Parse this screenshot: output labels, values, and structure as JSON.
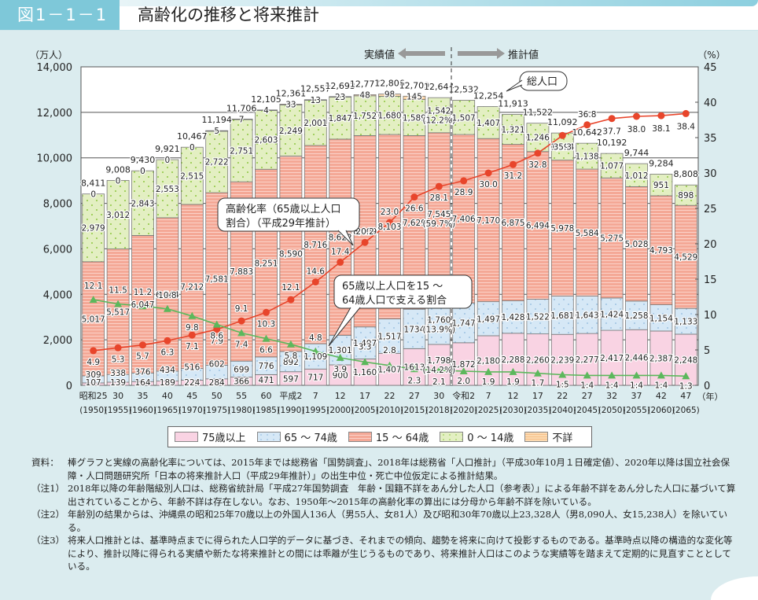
{
  "header": {
    "figure_number": "図1－1－1",
    "title": "高齢化の推移と将来推計"
  },
  "chart_data": {
    "type": "bar",
    "stacked": true,
    "title": "高齢化の推移と将来推計",
    "left_axis": {
      "unit_label": "（万人）",
      "min": 0,
      "max": 14000,
      "ticks": [
        0,
        2000,
        4000,
        6000,
        8000,
        10000,
        12000,
        14000
      ],
      "tick_labels": [
        "0",
        "2,000",
        "4,000",
        "6,000",
        "8,000",
        "10,000",
        "12,000",
        "14,000"
      ]
    },
    "right_axis": {
      "unit_label": "（%）",
      "min": 0,
      "max": 45,
      "ticks": [
        0,
        5,
        10,
        15,
        20,
        25,
        30,
        35,
        40,
        45
      ],
      "tick_labels": [
        "0",
        "5",
        "10",
        "15",
        "20",
        "25",
        "30",
        "35",
        "40",
        "45"
      ]
    },
    "x_unit_label": "（年）",
    "grid": true,
    "categories": [
      {
        "era": "昭和25",
        "year": "(1950)"
      },
      {
        "era": "30",
        "year": "(1955)"
      },
      {
        "era": "35",
        "year": "(1960)"
      },
      {
        "era": "40",
        "year": "(1965)"
      },
      {
        "era": "45",
        "year": "(1970)"
      },
      {
        "era": "50",
        "year": "(1975)"
      },
      {
        "era": "55",
        "year": "(1980)"
      },
      {
        "era": "60",
        "year": "(1985)"
      },
      {
        "era": "平成2",
        "year": "(1990)"
      },
      {
        "era": "7",
        "year": "(1995)"
      },
      {
        "era": "12",
        "year": "(2000)"
      },
      {
        "era": "17",
        "year": "(2005)"
      },
      {
        "era": "22",
        "year": "(2010)"
      },
      {
        "era": "27",
        "year": "(2015)"
      },
      {
        "era": "30",
        "year": "(2018)"
      },
      {
        "era": "令和2",
        "year": "(2020)"
      },
      {
        "era": "7",
        "year": "(2025)"
      },
      {
        "era": "12",
        "year": "(2030)"
      },
      {
        "era": "17",
        "year": "(2035)"
      },
      {
        "era": "22",
        "year": "(2040)"
      },
      {
        "era": "27",
        "year": "(2045)"
      },
      {
        "era": "32",
        "year": "(2050)"
      },
      {
        "era": "37",
        "year": "(2055)"
      },
      {
        "era": "42",
        "year": "(2060)"
      },
      {
        "era": "47",
        "year": "(2065)"
      }
    ],
    "series": [
      {
        "name": "75歳以上",
        "color": "#f9d3e3",
        "values": [
          107,
          139,
          164,
          189,
          224,
          284,
          366,
          471,
          597,
          717,
          900,
          1160,
          1407,
          1613,
          1798,
          1872,
          2180,
          2288,
          2260,
          2239,
          2277,
          2417,
          2446,
          2387,
          2248
        ],
        "labels": [
          "107",
          "139",
          "164",
          "189",
          "224",
          "284",
          "366",
          "471",
          "597",
          "717",
          "900",
          "1,160",
          "1,407",
          "1613",
          "1,798\n(14.2%)",
          "1,872",
          "2,180",
          "2,288",
          "2,260",
          "2,239",
          "2,277",
          "2,417",
          "2,446",
          "2,387",
          "2,248"
        ]
      },
      {
        "name": "65～74歳",
        "color": "#d6e8f6",
        "values": [
          309,
          338,
          376,
          434,
          516,
          602,
          699,
          776,
          892,
          1109,
          1301,
          1407,
          1517,
          1734,
          1760,
          1747,
          1497,
          1428,
          1522,
          1681,
          1643,
          1424,
          1258,
          1154,
          1133
        ],
        "labels": [
          "309",
          "338",
          "376",
          "434",
          "516",
          "602",
          "699",
          "776",
          "892",
          "1,109",
          "1,301",
          "1,407",
          "1,517",
          "1734",
          "1,760\n(13.9%)",
          "1,747",
          "1,497",
          "1,428",
          "1,522",
          "1,681",
          "1,643",
          "1,424",
          "1,258",
          "1,154",
          "1,133"
        ]
      },
      {
        "name": "15～64歳",
        "color": "#f4a896",
        "values": [
          5017,
          5517,
          6047,
          6744,
          7212,
          7581,
          7883,
          8251,
          8590,
          8716,
          8622,
          8409,
          8103,
          7629,
          7545,
          7406,
          7170,
          6875,
          6494,
          5978,
          5584,
          5275,
          5028,
          4793,
          4529
        ],
        "labels": [
          "5,017",
          "5,517",
          "6,047",
          "6,744",
          "7,212",
          "7,581",
          "7,883",
          "8,251",
          "8,590",
          "8,716",
          "8,622",
          "8,409",
          "8,103",
          "7,629",
          "7,545\n(59.7%)",
          "7,406",
          "7,170",
          "6,875",
          "6,494",
          "5,978",
          "5,584",
          "5,275",
          "5,028",
          "4,793",
          "4,529"
        ]
      },
      {
        "name": "0～14歳",
        "color": "#e3efc2",
        "values": [
          2979,
          3012,
          2843,
          2553,
          2515,
          2722,
          2751,
          2603,
          2249,
          2001,
          1847,
          1752,
          1680,
          1589,
          1542,
          1507,
          1407,
          1321,
          1246,
          1194,
          1138,
          1077,
          1012,
          951,
          898
        ],
        "labels": [
          "2,979",
          "3,012",
          "2,843",
          "2,553",
          "2,515",
          "2,722",
          "2,751",
          "2,603",
          "2,249",
          "2,001",
          "1,847",
          "1,752",
          "1,680",
          "1,589",
          "1,542\n(12.2%)",
          "1,507",
          "1,407",
          "1,321",
          "1,246",
          "1,194",
          "1,138",
          "1,077",
          "1,012",
          "951",
          "898"
        ]
      },
      {
        "name": "不詳",
        "color": "#fbd9b0",
        "values": [
          0,
          0,
          0,
          0,
          0,
          5,
          7,
          4,
          33,
          13,
          23,
          48,
          98,
          145,
          null,
          null,
          null,
          null,
          null,
          null,
          null,
          null,
          null,
          null,
          null
        ],
        "labels": [
          "0",
          "0",
          "0",
          "0",
          "0",
          "5",
          "7",
          "4",
          "33",
          "13",
          "23",
          "48",
          "98",
          "145",
          "",
          "",
          "",
          "",
          "",
          "",
          "",
          "",
          "",
          "",
          ""
        ]
      }
    ],
    "totals": [
      8411,
      9008,
      9430,
      9921,
      10467,
      11194,
      11706,
      12105,
      12361,
      12557,
      12693,
      12777,
      12806,
      12709,
      12644,
      12532,
      12254,
      11913,
      11522,
      11092,
      10642,
      10192,
      9744,
      9284,
      8808
    ],
    "total_labels": [
      "8,411",
      "9,008",
      "9,430",
      "9,921",
      "10,467",
      "11,194",
      "11,706",
      "12,105",
      "12,361",
      "12,557",
      "12,693",
      "12,777",
      "12,806",
      "12,709",
      "12,644",
      "12,532",
      "12,254",
      "11,913",
      "11,522",
      "11,092",
      "10,642",
      "10,192",
      "9,744",
      "9,284",
      "8,808"
    ],
    "lines": [
      {
        "name": "高齢化率（65歳以上人口割合）",
        "axis": "right",
        "color": "#e8452b",
        "marker": "circle",
        "values": [
          4.9,
          5.3,
          5.7,
          6.3,
          7.1,
          7.9,
          9.1,
          10.3,
          12.1,
          14.6,
          17.4,
          20.2,
          23.0,
          26.6,
          28.1,
          28.9,
          30.0,
          31.2,
          32.8,
          35.3,
          36.8,
          37.7,
          38.0,
          38.1,
          38.4
        ],
        "labels": [
          "4.9",
          "5.3",
          "5.7",
          "6.3",
          "7.1",
          "7.9",
          "9.1",
          "10.3",
          "12.1",
          "14.6",
          "17.4",
          "20.2",
          "23.0",
          "26.6",
          "28.1",
          "28.9",
          "30.0",
          "31.2",
          "32.8",
          "35.3",
          "36.8",
          "37.7",
          "38.0",
          "38.1",
          "38.4"
        ]
      },
      {
        "name": "65歳以上人口を15～64歳人口で支える割合",
        "axis": "right",
        "color": "#5cb85c",
        "marker": "triangle",
        "values": [
          12.1,
          11.5,
          11.2,
          10.8,
          9.8,
          8.6,
          7.4,
          6.6,
          5.8,
          4.8,
          3.9,
          3.3,
          2.8,
          2.3,
          2.1,
          2.0,
          1.9,
          1.9,
          1.7,
          1.5,
          1.4,
          1.4,
          1.4,
          1.4,
          1.3
        ],
        "labels": [
          "12.1",
          "11.5",
          "11.2",
          "10.8",
          "9.8",
          "8.6",
          "7.4",
          "6.6",
          "5.8",
          "4.8",
          "3.9",
          "3.3",
          "2.8",
          "2.3",
          "2.1",
          "2.0",
          "1.9",
          "1.9",
          "1.7",
          "1:5",
          "1:4",
          "1:4",
          "1:4",
          "1:4",
          "1:3"
        ]
      }
    ],
    "period_labels": {
      "actual": "実績値",
      "projection": "推計値"
    },
    "annotations": {
      "total_population": "総人口",
      "aging_rate": [
        "高齢化率（65歳以上人口",
        "割合）（平成29年推計）"
      ],
      "support_ratio": [
        "65歳以上人口を15 ～",
        "64歳人口で支える割合"
      ]
    },
    "legend": [
      "75歳以上",
      "65 ～ 74歳",
      "15 ～ 64歳",
      "0 ～ 14歳",
      "不詳"
    ],
    "legend_placement": "bottom"
  },
  "legend": {
    "items": [
      {
        "label": "75歳以上",
        "color": "#f9d3e3"
      },
      {
        "label": "65 ～ 74歳",
        "color": "#d6e8f6"
      },
      {
        "label": "15 ～ 64歳",
        "color": "#f4a896"
      },
      {
        "label": "0 ～ 14歳",
        "color": "#e3efc2"
      },
      {
        "label": "不詳",
        "color": "#fbd9b0"
      }
    ]
  },
  "notes": [
    {
      "head": "資料：",
      "body": "棒グラフと実線の高齢化率については、2015年までは総務省「国勢調査」、2018年は総務省「人口推計」（平成30年10月１日確定値）、2020年以降は国立社会保障・人口問題研究所「日本の将来推計人口（平成29年推計）」の出生中位・死亡中位仮定による推計結果。"
    },
    {
      "head": "（注1）",
      "body": "2018年以降の年齢階級別人口は、総務省統計局「平成27年国勢調査　年齢・国籍不詳をあん分した人口（参考表）」による年齢不詳をあん分した人口に基づいて算出されていることから、年齢不詳は存在しない。なお、1950年～2015年の高齢化率の算出には分母から年齢不詳を除いている。"
    },
    {
      "head": "（注2）",
      "body": "年齢別の結果からは、沖縄県の昭和25年70歳以上の外国人136人（男55人、女81人）及び昭和30年70歳以上23,328人（男8,090人、女15,238人）を除いている。"
    },
    {
      "head": "（注3）",
      "body": "将来人口推計とは、基準時点までに得られた人口学的データに基づき、それまでの傾向、趨勢を将来に向けて投影するものである。基準時点以降の構造的な変化等により、推計以降に得られる実績や新たな将来推計との間には乖離が生じうるものであり、将来推計人口はこのような実績等を踏まえて定期的に見直すこととしている。"
    }
  ]
}
